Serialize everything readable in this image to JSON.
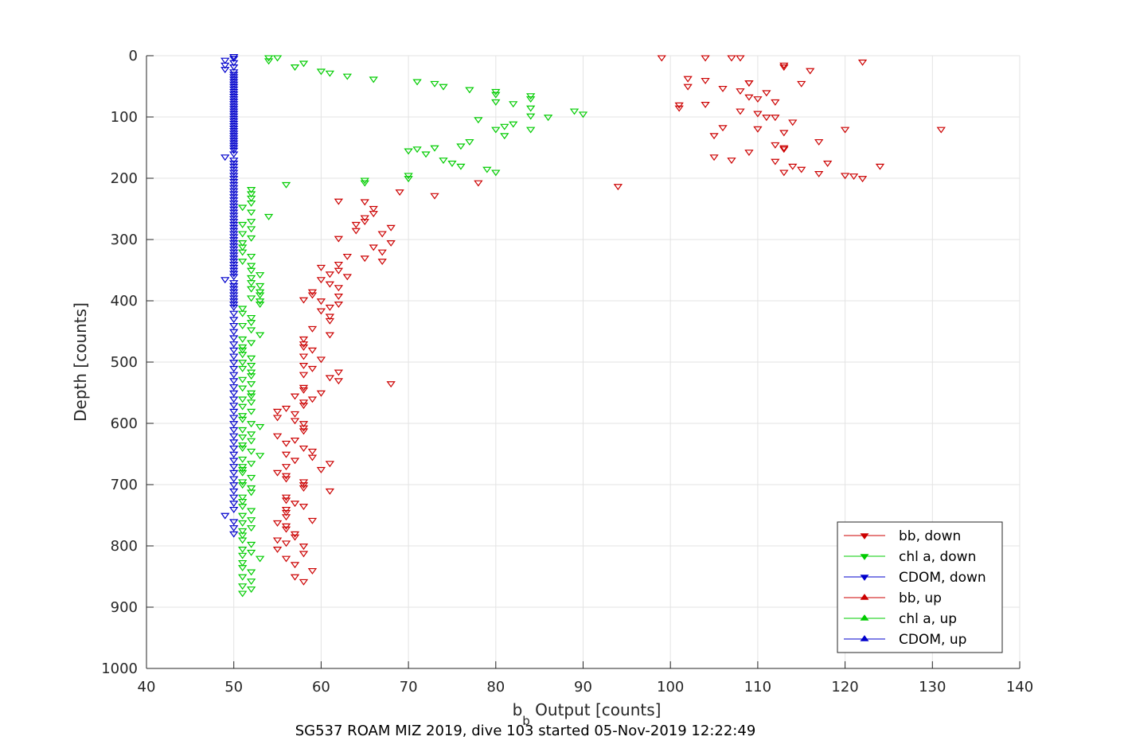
{
  "chart_data": {
    "type": "scatter",
    "title": "",
    "xlabel_main": "b",
    "xlabel_sub": "b",
    "xlabel_rest": " Output [counts]",
    "ylabel": "Depth [counts]",
    "caption": "SG537 ROAM MIZ 2019, dive 103 started 05-Nov-2019 12:22:49",
    "xlim": [
      40,
      140
    ],
    "ylim": [
      0,
      1000
    ],
    "y_reversed": true,
    "xticks": [
      40,
      50,
      60,
      70,
      80,
      90,
      100,
      110,
      120,
      130,
      140
    ],
    "yticks": [
      0,
      100,
      200,
      300,
      400,
      500,
      600,
      700,
      800,
      900,
      1000
    ],
    "grid": true,
    "legend_position": "bottom-right",
    "series": [
      {
        "name": "bb, down",
        "color": "#cc0000",
        "marker": "triangle-down",
        "x": [
          99,
          104,
          107,
          108,
          122,
          113,
          113,
          116,
          102,
          104,
          109,
          109,
          115,
          102,
          106,
          108,
          111,
          109,
          110,
          112,
          104,
          101,
          101,
          108,
          110,
          111,
          112,
          114,
          106,
          110,
          120,
          131,
          113,
          105,
          117,
          112,
          113,
          113,
          109,
          105,
          107,
          112,
          118,
          124,
          114,
          115,
          113,
          117,
          120,
          121,
          122,
          94,
          78,
          73,
          69,
          65,
          62,
          66,
          66,
          65,
          65,
          64,
          68,
          64,
          67,
          62,
          68,
          66,
          67,
          63,
          65,
          67,
          62,
          60,
          62,
          61,
          63,
          60,
          61,
          62,
          59,
          59,
          62,
          58,
          60,
          62,
          61,
          60,
          61,
          61,
          59,
          61,
          58,
          58,
          58,
          59,
          58,
          60,
          58,
          59,
          62,
          58,
          61,
          62,
          68,
          58,
          58,
          60,
          57,
          59,
          58,
          58,
          56,
          55,
          57,
          55,
          57,
          58,
          58,
          58,
          55,
          57,
          56,
          58,
          59,
          56,
          59,
          57,
          61,
          56,
          60,
          55,
          56,
          56,
          58,
          58,
          58,
          61,
          56,
          56,
          57,
          58,
          56,
          56,
          56,
          59,
          55,
          56,
          56,
          57,
          57,
          55,
          56,
          58,
          55,
          58,
          56,
          57,
          59,
          57,
          58
        ],
        "y": [
          3,
          3,
          3,
          3,
          10,
          15,
          18,
          24,
          37,
          40,
          44,
          44,
          45,
          50,
          53,
          57,
          60,
          67,
          70,
          75,
          79,
          80,
          85,
          90,
          94,
          100,
          100,
          108,
          117,
          119,
          120,
          120,
          125,
          130,
          140,
          145,
          150,
          152,
          157,
          165,
          170,
          172,
          175,
          180,
          180,
          185,
          190,
          192,
          195,
          196,
          200,
          213,
          207,
          228,
          222,
          238,
          237,
          249,
          257,
          264,
          270,
          275,
          280,
          285,
          290,
          298,
          305,
          312,
          320,
          327,
          330,
          335,
          340,
          345,
          350,
          356,
          360,
          365,
          372,
          378,
          385,
          390,
          392,
          398,
          400,
          405,
          410,
          416,
          425,
          432,
          445,
          455,
          462,
          470,
          475,
          480,
          490,
          495,
          505,
          510,
          516,
          520,
          525,
          530,
          535,
          541,
          545,
          550,
          555,
          560,
          565,
          570,
          575,
          580,
          584,
          590,
          595,
          600,
          607,
          612,
          620,
          627,
          632,
          640,
          645,
          650,
          655,
          660,
          665,
          670,
          675,
          680,
          685,
          690,
          695,
          700,
          705,
          710,
          720,
          725,
          730,
          735,
          740,
          745,
          752,
          758,
          762,
          767,
          772,
          780,
          785,
          790,
          795,
          800,
          805,
          812,
          820,
          830,
          840,
          850,
          858
        ]
      },
      {
        "name": "chl a, down",
        "color": "#00cc00",
        "marker": "triangle-down",
        "x": [
          54,
          55,
          54,
          58,
          57,
          60,
          61,
          63,
          66,
          71,
          73,
          74,
          77,
          80,
          80,
          84,
          84,
          80,
          82,
          84,
          89,
          90,
          86,
          84,
          78,
          82,
          81,
          80,
          84,
          81,
          77,
          76,
          73,
          71,
          70,
          72,
          74,
          75,
          76,
          79,
          80,
          70,
          70,
          65,
          65,
          56,
          52,
          52,
          52,
          52,
          51,
          52,
          54,
          52,
          51,
          52,
          51,
          52,
          51,
          51,
          51,
          52,
          51,
          52,
          52,
          53,
          52,
          52,
          53,
          52,
          53,
          53,
          52,
          53,
          53,
          51,
          51,
          52,
          52,
          51,
          52,
          53,
          51,
          52,
          51,
          51,
          51,
          52,
          51,
          52,
          51,
          52,
          52,
          51,
          52,
          51,
          52,
          52,
          51,
          52,
          51,
          52,
          51,
          51,
          52,
          53,
          51,
          52,
          51,
          52,
          51,
          51,
          52,
          53,
          51,
          52,
          51,
          51,
          51,
          52,
          51,
          51,
          52,
          52,
          51,
          51,
          51,
          52,
          51,
          52,
          51,
          52,
          51,
          51,
          51,
          52,
          51,
          52,
          51,
          53,
          51,
          51,
          52,
          51,
          52,
          51,
          52,
          51
        ],
        "y": [
          3,
          3,
          8,
          12,
          18,
          25,
          28,
          33,
          38,
          42,
          45,
          50,
          55,
          58,
          63,
          65,
          70,
          75,
          78,
          85,
          90,
          95,
          100,
          98,
          104,
          111,
          115,
          120,
          120,
          130,
          140,
          147,
          150,
          152,
          155,
          160,
          170,
          175,
          180,
          185,
          190,
          195,
          200,
          203,
          207,
          210,
          218,
          225,
          232,
          240,
          247,
          255,
          262,
          270,
          275,
          282,
          290,
          297,
          305,
          312,
          320,
          327,
          335,
          342,
          350,
          357,
          362,
          370,
          375,
          380,
          385,
          390,
          395,
          400,
          405,
          412,
          420,
          427,
          435,
          440,
          447,
          455,
          462,
          468,
          475,
          480,
          487,
          493,
          500,
          505,
          510,
          516,
          522,
          528,
          535,
          542,
          550,
          555,
          560,
          565,
          572,
          580,
          587,
          593,
          600,
          605,
          610,
          617,
          622,
          628,
          635,
          640,
          645,
          652,
          658,
          665,
          670,
          675,
          680,
          688,
          695,
          700,
          705,
          712,
          720,
          727,
          735,
          742,
          750,
          757,
          762,
          770,
          775,
          782,
          790,
          797,
          805,
          810,
          815,
          820,
          827,
          835,
          842,
          850,
          857,
          865,
          870,
          877
        ]
      },
      {
        "name": "CDOM, down",
        "color": "#0000cc",
        "marker": "triangle-down",
        "x": [
          50,
          50,
          49,
          50,
          49,
          50,
          49,
          50,
          50,
          50,
          50,
          50,
          50,
          50,
          50,
          50,
          50,
          50,
          50,
          50,
          50,
          50,
          50,
          50,
          50,
          50,
          50,
          50,
          50,
          50,
          50,
          50,
          50,
          50,
          50,
          50,
          50,
          50,
          50,
          50,
          50,
          49,
          50,
          50,
          50,
          50,
          50,
          50,
          50,
          50,
          50,
          50,
          50,
          50,
          50,
          50,
          50,
          50,
          50,
          50,
          50,
          50,
          50,
          50,
          50,
          50,
          50,
          50,
          50,
          50,
          50,
          50,
          50,
          50,
          50,
          50,
          50,
          50,
          50,
          50,
          50,
          49,
          50,
          50,
          50,
          50,
          50,
          50,
          50,
          50,
          50,
          50,
          50,
          50,
          50,
          50,
          50,
          50,
          50,
          50,
          50,
          50,
          50,
          50,
          50,
          50,
          50,
          50,
          50,
          50,
          50,
          50,
          50,
          50,
          50,
          50,
          50,
          50,
          50,
          50,
          50,
          50,
          50,
          50,
          49,
          50,
          50,
          50
        ],
        "y": [
          1,
          4,
          7,
          11,
          15,
          18,
          22,
          26,
          30,
          34,
          38,
          42,
          46,
          50,
          54,
          58,
          62,
          66,
          70,
          74,
          78,
          82,
          86,
          90,
          94,
          98,
          102,
          106,
          110,
          114,
          118,
          122,
          126,
          130,
          134,
          138,
          142,
          146,
          150,
          154,
          160,
          165,
          170,
          175,
          180,
          185,
          190,
          195,
          200,
          205,
          210,
          215,
          220,
          225,
          230,
          235,
          240,
          245,
          250,
          255,
          260,
          265,
          270,
          275,
          280,
          285,
          290,
          295,
          300,
          305,
          310,
          315,
          320,
          325,
          330,
          335,
          340,
          345,
          350,
          355,
          360,
          365,
          370,
          375,
          380,
          385,
          390,
          395,
          400,
          405,
          410,
          420,
          430,
          440,
          450,
          460,
          470,
          480,
          490,
          500,
          510,
          520,
          530,
          540,
          550,
          560,
          570,
          580,
          590,
          600,
          610,
          620,
          630,
          640,
          650,
          660,
          670,
          680,
          690,
          700,
          710,
          720,
          730,
          740,
          750,
          760,
          770,
          780
        ]
      },
      {
        "name": "bb, up",
        "color": "#cc0000",
        "marker": "triangle-up",
        "x": [],
        "y": []
      },
      {
        "name": "chl a, up",
        "color": "#00cc00",
        "marker": "triangle-up",
        "x": [],
        "y": []
      },
      {
        "name": "CDOM, up",
        "color": "#0000cc",
        "marker": "triangle-up",
        "x": [],
        "y": []
      }
    ]
  }
}
